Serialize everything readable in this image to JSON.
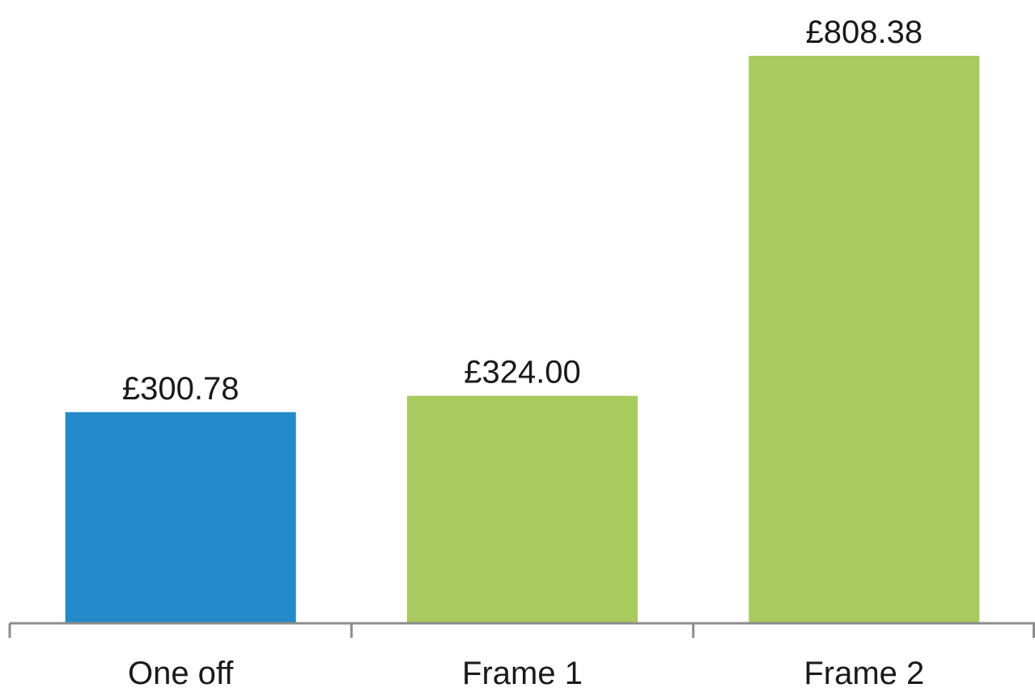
{
  "chart_data": {
    "type": "bar",
    "title": "",
    "xlabel": "",
    "ylabel": "",
    "categories": [
      "One off",
      "Frame 1",
      "Frame 2"
    ],
    "values": [
      300.78,
      324.0,
      808.38
    ],
    "data_labels": [
      "£300.78",
      "£324.00",
      "£808.38"
    ],
    "bar_colors": [
      "#258ac9",
      "#a9ca5e",
      "#a9ca5e"
    ],
    "axis_color": "#8c8c8c",
    "ylim": [
      0,
      860
    ],
    "grid": false,
    "legend": "none",
    "y_axis_visible": false
  }
}
